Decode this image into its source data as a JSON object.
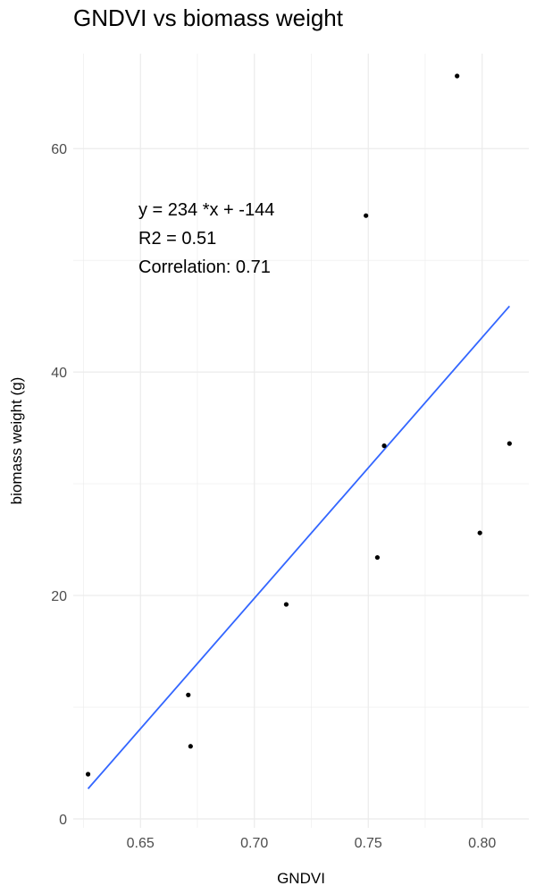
{
  "chart_data": {
    "type": "scatter",
    "title": "GNDVI vs biomass weight",
    "xlabel": "GNDVI",
    "ylabel": "biomass weight (g)",
    "xlim": [
      0.6205,
      0.8205
    ],
    "ylim": [
      -0.8,
      68.5
    ],
    "x_ticks": [
      0.65,
      0.7,
      0.75,
      0.8
    ],
    "x_tick_labels": [
      "0.65",
      "0.70",
      "0.75",
      "0.80"
    ],
    "y_ticks": [
      0,
      20,
      40,
      60
    ],
    "y_tick_labels": [
      "0",
      "20",
      "40",
      "60"
    ],
    "grid": true,
    "points": [
      {
        "x": 0.627,
        "y": 4.0
      },
      {
        "x": 0.671,
        "y": 11.1
      },
      {
        "x": 0.672,
        "y": 6.5
      },
      {
        "x": 0.714,
        "y": 19.2
      },
      {
        "x": 0.749,
        "y": 54.0
      },
      {
        "x": 0.754,
        "y": 23.4
      },
      {
        "x": 0.757,
        "y": 33.4
      },
      {
        "x": 0.789,
        "y": 66.5
      },
      {
        "x": 0.799,
        "y": 25.6
      },
      {
        "x": 0.812,
        "y": 33.6
      }
    ],
    "fit_line": {
      "x": [
        0.627,
        0.812
      ],
      "y": [
        2.7,
        45.9
      ],
      "color": "#3366ff"
    },
    "annotations": [
      "y = 234 *x + -144",
      "R2 = 0.51",
      "Correlation: 0.71"
    ],
    "point_color": "#000000",
    "grid_color": "#ebebeb"
  }
}
